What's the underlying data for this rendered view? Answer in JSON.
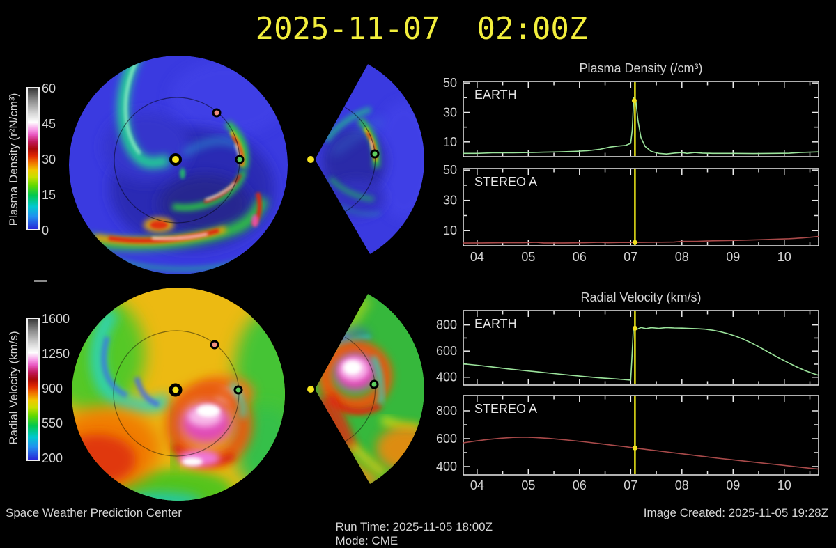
{
  "title": "2025-11-07  02:00Z",
  "colors": {
    "background": "#000000",
    "title_text": "#f2ee3c",
    "axis_text": "#d4d4d4",
    "frame": "#ebebeb",
    "earth_line": "#9ce49c",
    "stereo_line": "#a94a4a",
    "now_line": "#ece818",
    "now_marker": "#f0e020",
    "sun_marker": "#f6e41e",
    "earth_marker": "#5ecc5e",
    "stereo_a_marker": "#f09080"
  },
  "colorbars": {
    "density": {
      "label": "Plasma Density (r²N/cm³)",
      "ticks": [
        "60",
        "45",
        "30",
        "15",
        "0"
      ]
    },
    "velocity": {
      "label": "Radial Velocity (km/s)",
      "ticks": [
        "1600",
        "1250",
        "900",
        "550",
        "200"
      ]
    }
  },
  "footer": {
    "left": "Space Weather Prediction Center",
    "run_time": "Run Time: 2025-11-05 18:00Z",
    "mode": "Mode: CME",
    "created": "Image Created: 2025-11-05 19:28Z"
  },
  "chart_data": [
    {
      "id": "density_earth",
      "type": "line",
      "title": "Plasma Density (/cm³)",
      "panel_label": "EARTH",
      "xlim": [
        3.73,
        10.67
      ],
      "ylim": [
        0,
        51
      ],
      "yticks": [
        10,
        30,
        50
      ],
      "yticks_minor": [
        20,
        40
      ],
      "xticks": [
        4,
        5,
        6,
        7,
        8,
        9,
        10
      ],
      "xtick_labels": null,
      "line": "earth_line",
      "now_x": 7.083,
      "now_marker": [
        7.07,
        38
      ],
      "points": [
        [
          3.73,
          2.2
        ],
        [
          4.0,
          2.2
        ],
        [
          4.3,
          2.6
        ],
        [
          4.7,
          2.6
        ],
        [
          5.0,
          2.8
        ],
        [
          5.3,
          3.0
        ],
        [
          5.6,
          3.2
        ],
        [
          5.9,
          3.6
        ],
        [
          6.15,
          4.0
        ],
        [
          6.4,
          5.0
        ],
        [
          6.6,
          6.5
        ],
        [
          6.75,
          7.2
        ],
        [
          6.9,
          7.6
        ],
        [
          7.0,
          9.0
        ],
        [
          7.03,
          18
        ],
        [
          7.06,
          40
        ],
        [
          7.1,
          38
        ],
        [
          7.14,
          25
        ],
        [
          7.2,
          13
        ],
        [
          7.28,
          7
        ],
        [
          7.4,
          3.6
        ],
        [
          7.55,
          2.2
        ],
        [
          7.7,
          1.8
        ],
        [
          7.85,
          2.4
        ],
        [
          8.0,
          2.8
        ],
        [
          8.1,
          2.2
        ],
        [
          8.25,
          2.8
        ],
        [
          8.4,
          2.4
        ],
        [
          8.6,
          2.2
        ],
        [
          9.0,
          2.2
        ],
        [
          9.4,
          2.1
        ],
        [
          9.8,
          2.2
        ],
        [
          10.1,
          2.3
        ],
        [
          10.3,
          2.8
        ],
        [
          10.5,
          3.0
        ],
        [
          10.67,
          3.2
        ]
      ]
    },
    {
      "id": "density_stereo_a",
      "type": "line",
      "title": null,
      "panel_label": "STEREO A",
      "xlim": [
        3.73,
        10.67
      ],
      "ylim": [
        0,
        51
      ],
      "yticks": [
        10,
        30,
        50
      ],
      "yticks_minor": [
        20,
        40
      ],
      "xticks": [
        4,
        5,
        6,
        7,
        8,
        9,
        10
      ],
      "xtick_labels": [
        "04",
        "05",
        "06",
        "07",
        "08",
        "09",
        "10"
      ],
      "line": "stereo_line",
      "now_x": 7.083,
      "now_marker": [
        7.083,
        2.2
      ],
      "points": [
        [
          3.73,
          1.8
        ],
        [
          4.1,
          1.9
        ],
        [
          4.5,
          2.0
        ],
        [
          4.9,
          2.0
        ],
        [
          5.15,
          2.3
        ],
        [
          5.3,
          1.9
        ],
        [
          5.7,
          1.9
        ],
        [
          6.1,
          2.0
        ],
        [
          6.4,
          2.3
        ],
        [
          6.55,
          2.0
        ],
        [
          6.8,
          2.2
        ],
        [
          7.083,
          2.2
        ],
        [
          7.35,
          2.3
        ],
        [
          7.6,
          2.4
        ],
        [
          7.85,
          2.5
        ],
        [
          8.0,
          3.0
        ],
        [
          8.3,
          3.0
        ],
        [
          8.6,
          3.3
        ],
        [
          8.9,
          3.5
        ],
        [
          9.2,
          3.7
        ],
        [
          9.5,
          4.0
        ],
        [
          9.8,
          4.3
        ],
        [
          10.1,
          4.7
        ],
        [
          10.35,
          5.2
        ],
        [
          10.55,
          5.8
        ],
        [
          10.67,
          6.2
        ]
      ]
    },
    {
      "id": "velocity_earth",
      "type": "line",
      "title": "Radial Velocity (km/s)",
      "panel_label": "EARTH",
      "xlim": [
        3.73,
        10.67
      ],
      "ylim": [
        340,
        910
      ],
      "yticks": [
        400,
        600,
        800
      ],
      "yticks_minor": [
        500,
        700
      ],
      "xticks": [
        4,
        5,
        6,
        7,
        8,
        9,
        10
      ],
      "xtick_labels": null,
      "line": "earth_line",
      "now_x": 7.083,
      "now_marker": [
        7.083,
        775
      ],
      "points": [
        [
          3.73,
          502
        ],
        [
          4.0,
          492
        ],
        [
          4.3,
          478
        ],
        [
          4.6,
          464
        ],
        [
          4.9,
          452
        ],
        [
          5.2,
          440
        ],
        [
          5.5,
          428
        ],
        [
          5.8,
          416
        ],
        [
          6.1,
          405
        ],
        [
          6.4,
          395
        ],
        [
          6.7,
          387
        ],
        [
          6.9,
          381
        ],
        [
          7.0,
          378
        ],
        [
          7.02,
          520
        ],
        [
          7.05,
          760
        ],
        [
          7.08,
          790
        ],
        [
          7.13,
          768
        ],
        [
          7.2,
          780
        ],
        [
          7.3,
          772
        ],
        [
          7.4,
          779
        ],
        [
          7.55,
          774
        ],
        [
          7.7,
          780
        ],
        [
          7.85,
          777
        ],
        [
          8.0,
          776
        ],
        [
          8.15,
          773
        ],
        [
          8.3,
          771
        ],
        [
          8.45,
          768
        ],
        [
          8.6,
          760
        ],
        [
          8.75,
          748
        ],
        [
          8.9,
          733
        ],
        [
          9.05,
          714
        ],
        [
          9.2,
          691
        ],
        [
          9.35,
          664
        ],
        [
          9.5,
          634
        ],
        [
          9.65,
          601
        ],
        [
          9.8,
          568
        ],
        [
          9.95,
          536
        ],
        [
          10.1,
          506
        ],
        [
          10.25,
          478
        ],
        [
          10.4,
          452
        ],
        [
          10.55,
          430
        ],
        [
          10.67,
          415
        ]
      ]
    },
    {
      "id": "velocity_stereo_a",
      "type": "line",
      "title": null,
      "panel_label": "STEREO A",
      "xlim": [
        3.73,
        10.67
      ],
      "ylim": [
        340,
        910
      ],
      "yticks": [
        400,
        600,
        800
      ],
      "yticks_minor": [
        500,
        700
      ],
      "xticks": [
        4,
        5,
        6,
        7,
        8,
        9,
        10
      ],
      "xtick_labels": [
        "04",
        "05",
        "06",
        "07",
        "08",
        "09",
        "10"
      ],
      "line": "stereo_line",
      "now_x": 7.083,
      "now_marker": [
        7.083,
        533
      ],
      "points": [
        [
          3.73,
          570
        ],
        [
          3.95,
          582
        ],
        [
          4.2,
          594
        ],
        [
          4.45,
          603
        ],
        [
          4.7,
          609
        ],
        [
          4.95,
          611
        ],
        [
          5.15,
          608
        ],
        [
          5.4,
          602
        ],
        [
          5.65,
          594
        ],
        [
          5.9,
          585
        ],
        [
          6.15,
          575
        ],
        [
          6.4,
          564
        ],
        [
          6.65,
          553
        ],
        [
          6.9,
          542
        ],
        [
          7.083,
          533
        ],
        [
          7.3,
          523
        ],
        [
          7.5,
          514
        ],
        [
          7.7,
          505
        ],
        [
          7.9,
          496
        ],
        [
          8.1,
          487
        ],
        [
          8.3,
          478
        ],
        [
          8.5,
          469
        ],
        [
          8.7,
          460
        ],
        [
          8.9,
          452
        ],
        [
          9.1,
          444
        ],
        [
          9.3,
          436
        ],
        [
          9.5,
          428
        ],
        [
          9.7,
          420
        ],
        [
          9.9,
          412
        ],
        [
          10.1,
          404
        ],
        [
          10.3,
          396
        ],
        [
          10.5,
          388
        ],
        [
          10.67,
          382
        ]
      ]
    }
  ]
}
